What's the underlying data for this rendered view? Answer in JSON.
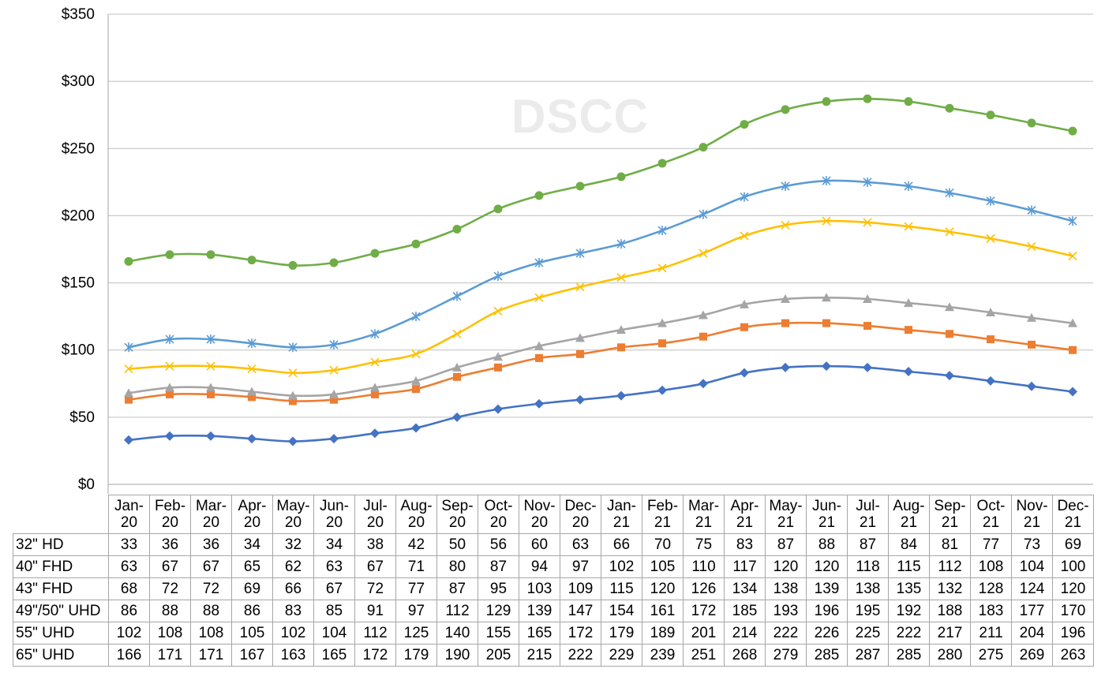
{
  "chart_data": {
    "type": "line",
    "title": "",
    "xlabel": "",
    "ylabel": "",
    "ylim": [
      0,
      350
    ],
    "yticks": [
      "$0",
      "$50",
      "$100",
      "$150",
      "$200",
      "$250",
      "$300",
      "$350"
    ],
    "y_tick_values": [
      0,
      50,
      100,
      150,
      200,
      250,
      300,
      350
    ],
    "grid": true,
    "watermark": "DSCC",
    "categories": [
      {
        "month": "Jan-",
        "year": "20"
      },
      {
        "month": "Feb-",
        "year": "20"
      },
      {
        "month": "Mar-",
        "year": "20"
      },
      {
        "month": "Apr-",
        "year": "20"
      },
      {
        "month": "May-",
        "year": "20"
      },
      {
        "month": "Jun-",
        "year": "20"
      },
      {
        "month": "Jul-",
        "year": "20"
      },
      {
        "month": "Aug-",
        "year": "20"
      },
      {
        "month": "Sep-",
        "year": "20"
      },
      {
        "month": "Oct-",
        "year": "20"
      },
      {
        "month": "Nov-",
        "year": "20"
      },
      {
        "month": "Dec-",
        "year": "20"
      },
      {
        "month": "Jan-",
        "year": "21"
      },
      {
        "month": "Feb-",
        "year": "21"
      },
      {
        "month": "Mar-",
        "year": "21"
      },
      {
        "month": "Apr-",
        "year": "21"
      },
      {
        "month": "May-",
        "year": "21"
      },
      {
        "month": "Jun-",
        "year": "21"
      },
      {
        "month": "Jul-",
        "year": "21"
      },
      {
        "month": "Aug-",
        "year": "21"
      },
      {
        "month": "Sep-",
        "year": "21"
      },
      {
        "month": "Oct-",
        "year": "21"
      },
      {
        "month": "Nov-",
        "year": "21"
      },
      {
        "month": "Dec-",
        "year": "21"
      }
    ],
    "series": [
      {
        "name": "32\" HD",
        "color": "#4472c4",
        "marker": "diamond",
        "values": [
          33,
          36,
          36,
          34,
          32,
          34,
          38,
          42,
          50,
          56,
          60,
          63,
          66,
          70,
          75,
          83,
          87,
          88,
          87,
          84,
          81,
          77,
          73,
          69
        ]
      },
      {
        "name": "40\" FHD",
        "color": "#ed7d31",
        "marker": "square",
        "values": [
          63,
          67,
          67,
          65,
          62,
          63,
          67,
          71,
          80,
          87,
          94,
          97,
          102,
          105,
          110,
          117,
          120,
          120,
          118,
          115,
          112,
          108,
          104,
          100
        ]
      },
      {
        "name": "43\" FHD",
        "color": "#a5a5a5",
        "marker": "triangle",
        "values": [
          68,
          72,
          72,
          69,
          66,
          67,
          72,
          77,
          87,
          95,
          103,
          109,
          115,
          120,
          126,
          134,
          138,
          139,
          138,
          135,
          132,
          128,
          124,
          120
        ]
      },
      {
        "name": "49\"/50\" UHD",
        "color": "#ffc000",
        "marker": "x",
        "values": [
          86,
          88,
          88,
          86,
          83,
          85,
          91,
          97,
          112,
          129,
          139,
          147,
          154,
          161,
          172,
          185,
          193,
          196,
          195,
          192,
          188,
          183,
          177,
          170
        ]
      },
      {
        "name": "55\" UHD",
        "color": "#5b9bd5",
        "marker": "star",
        "values": [
          102,
          108,
          108,
          105,
          102,
          104,
          112,
          125,
          140,
          155,
          165,
          172,
          179,
          189,
          201,
          214,
          222,
          226,
          225,
          222,
          217,
          211,
          204,
          196
        ]
      },
      {
        "name": "65\" UHD",
        "color": "#70ad47",
        "marker": "circle",
        "values": [
          166,
          171,
          171,
          167,
          163,
          165,
          172,
          179,
          190,
          205,
          215,
          222,
          229,
          239,
          251,
          268,
          279,
          285,
          287,
          285,
          280,
          275,
          269,
          263
        ]
      }
    ]
  }
}
